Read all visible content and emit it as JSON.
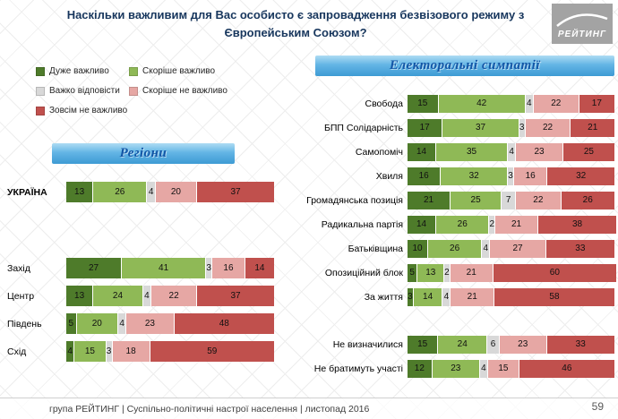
{
  "title": "Наскільки важливим для Вас особисто є запровадження безвізового режиму з Європейським Союзом?",
  "logo": {
    "text": "РЕЙТИНГ"
  },
  "legend": {
    "items": [
      {
        "label": "Дуже важливо",
        "color": "#4e7b2a"
      },
      {
        "label": "Скоріше важливо",
        "color": "#8fb956"
      },
      {
        "label": "Важко відповісти",
        "color": "#d8d8d8"
      },
      {
        "label": "Скоріше не важливо",
        "color": "#e6a7a4"
      },
      {
        "label": "Зовсім не важливо",
        "color": "#c0504d"
      }
    ]
  },
  "footer": {
    "text": "група РЕЙТИНГ |  Суспільно-політичні настрої населення  |  листопад 2016",
    "page": "59"
  },
  "chart_data": [
    {
      "type": "bar",
      "stacked": true,
      "orientation": "horizontal",
      "title": "Регіони",
      "unit": "percent",
      "xlim": [
        0,
        100
      ],
      "series_names": [
        "Дуже важливо",
        "Скоріше важливо",
        "Важко відповісти",
        "Скоріше не важливо",
        "Зовсім не важливо"
      ],
      "categories": [
        "УКРАЇНА",
        "Захід",
        "Центр",
        "Південь",
        "Схід"
      ],
      "rows": [
        [
          13,
          26,
          4,
          20,
          37
        ],
        [
          27,
          41,
          3,
          16,
          14
        ],
        [
          13,
          24,
          4,
          22,
          37
        ],
        [
          5,
          20,
          4,
          23,
          48
        ],
        [
          4,
          15,
          3,
          18,
          59
        ]
      ],
      "bold_categories": [
        "УКРАЇНА"
      ],
      "gap_before": [
        1
      ]
    },
    {
      "type": "bar",
      "stacked": true,
      "orientation": "horizontal",
      "title": "Електоральні симпатії",
      "unit": "percent",
      "xlim": [
        0,
        100
      ],
      "series_names": [
        "Дуже важливо",
        "Скоріше важливо",
        "Важко відповісти",
        "Скоріше не важливо",
        "Зовсім не важливо"
      ],
      "categories": [
        "Свобода",
        "БПП Солідарність",
        "Самопоміч",
        "Хвиля",
        "Громадянська позиція",
        "Радикальна партія",
        "Батьківщина",
        "Опозиційний блок",
        "За життя",
        "Не визначилися",
        "Не братимуть участі"
      ],
      "rows": [
        [
          15,
          42,
          4,
          22,
          17
        ],
        [
          17,
          37,
          3,
          22,
          21
        ],
        [
          14,
          35,
          4,
          23,
          25
        ],
        [
          16,
          32,
          3,
          16,
          32
        ],
        [
          21,
          25,
          7,
          22,
          26
        ],
        [
          14,
          26,
          2,
          21,
          38
        ],
        [
          10,
          26,
          4,
          27,
          33
        ],
        [
          5,
          13,
          2,
          21,
          60
        ],
        [
          3,
          14,
          4,
          21,
          58
        ],
        [
          15,
          24,
          6,
          23,
          33
        ],
        [
          12,
          23,
          4,
          15,
          46
        ]
      ],
      "gap_before": [
        9
      ]
    }
  ]
}
